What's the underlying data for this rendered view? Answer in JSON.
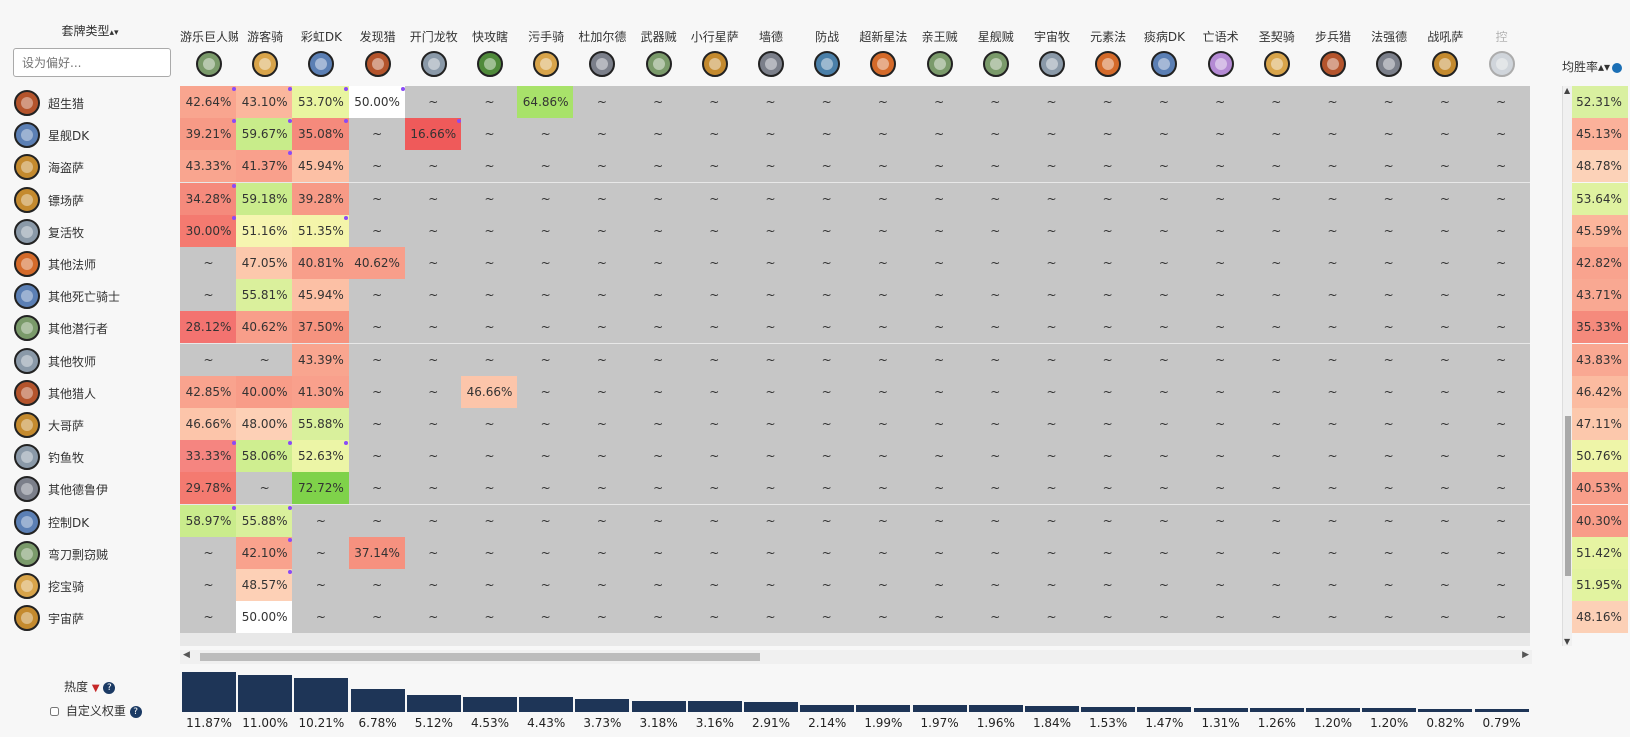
{
  "header": {
    "deck_type_label": "套牌类型",
    "deck_sort_icon": "▴▾",
    "preference_placeholder": "设为偏好...",
    "avg_winrate_label": "均胜率",
    "avg_winrate_sort_icon": "▴▾"
  },
  "footer": {
    "popularity_label": "热度",
    "custom_weight_label": "自定义权重"
  },
  "columns": [
    {
      "name": "游乐巨人贼",
      "icon": "rogue-icon",
      "color": "#7a9a6a"
    },
    {
      "name": "游客骑",
      "icon": "paladin-icon",
      "color": "#d8a44a"
    },
    {
      "name": "彩虹DK",
      "icon": "death-knight-icon",
      "color": "#5b7fb4"
    },
    {
      "name": "发现猎",
      "icon": "hunter-icon",
      "color": "#b4542c"
    },
    {
      "name": "开门龙牧",
      "icon": "priest-icon",
      "color": "#8a99a8"
    },
    {
      "name": "快攻瞎",
      "icon": "demon-hunter-icon",
      "color": "#4f8a3a"
    },
    {
      "name": "污手骑",
      "icon": "paladin-icon",
      "color": "#d8a44a"
    },
    {
      "name": "杜加尔德",
      "icon": "druid-icon",
      "color": "#7b7f8a"
    },
    {
      "name": "武器贼",
      "icon": "rogue-icon",
      "color": "#7a9a6a"
    },
    {
      "name": "小行星萨",
      "icon": "shaman-icon",
      "color": "#c48a2e"
    },
    {
      "name": "墙德",
      "icon": "druid-icon",
      "color": "#7b7f8a"
    },
    {
      "name": "防战",
      "icon": "warrior-icon",
      "color": "#4a7fa8"
    },
    {
      "name": "超新星法",
      "icon": "mage-icon",
      "color": "#d46a2a"
    },
    {
      "name": "亲王贼",
      "icon": "rogue-icon",
      "color": "#7a9a6a"
    },
    {
      "name": "星舰贼",
      "icon": "rogue-icon",
      "color": "#7a9a6a"
    },
    {
      "name": "宇宙牧",
      "icon": "priest-icon",
      "color": "#8a99a8"
    },
    {
      "name": "元素法",
      "icon": "mage-icon",
      "color": "#d46a2a"
    },
    {
      "name": "痰病DK",
      "icon": "death-knight-icon",
      "color": "#5b7fb4"
    },
    {
      "name": "亡语术",
      "icon": "warlock-icon",
      "color": "#b48ad4"
    },
    {
      "name": "圣契骑",
      "icon": "paladin-icon",
      "color": "#d8a44a"
    },
    {
      "name": "步兵猎",
      "icon": "hunter-icon",
      "color": "#b4542c"
    },
    {
      "name": "法强德",
      "icon": "druid-icon",
      "color": "#7b7f8a"
    },
    {
      "name": "战吼萨",
      "icon": "shaman-icon",
      "color": "#c48a2e"
    },
    {
      "name": "控",
      "icon": "priest-icon",
      "color": "#8a99a8"
    }
  ],
  "rows": [
    {
      "name": "超生猎",
      "icon": "hunter-icon",
      "color": "#b4542c",
      "avg": "52.31%",
      "avg_color": "#d9f0a0",
      "cells": [
        [
          "42.64%",
          "#f9a58f",
          1
        ],
        [
          "43.10%",
          "#fbb79d",
          1
        ],
        [
          "53.70%",
          "#e9f5a0",
          1
        ],
        [
          "50.00%",
          "#ffffff",
          1
        ],
        null,
        null,
        [
          "64.86%",
          "#a8e26a",
          0
        ]
      ]
    },
    {
      "name": "星舰DK",
      "icon": "death-knight-icon",
      "color": "#5b7fb4",
      "avg": "45.13%",
      "avg_color": "#fbb19a",
      "cells": [
        [
          "39.21%",
          "#f79a86",
          1
        ],
        [
          "59.67%",
          "#c8ec8a",
          1
        ],
        [
          "35.08%",
          "#f58a7c",
          1
        ],
        null,
        [
          "16.66%",
          "#ef5a5a",
          1
        ]
      ]
    },
    {
      "name": "海盗萨",
      "icon": "shaman-icon",
      "color": "#c48a2e",
      "avg": "48.78%",
      "avg_color": "#fcd2b8",
      "cells": [
        [
          "43.33%",
          "#f9a58f",
          0
        ],
        [
          "41.37%",
          "#f9a08c",
          1
        ],
        [
          "45.94%",
          "#fcc0a5",
          0
        ]
      ]
    },
    {
      "name": "镖场萨",
      "icon": "shaman-icon",
      "color": "#c48a2e",
      "avg": "53.64%",
      "avg_color": "#dff2a0",
      "cells": [
        [
          "34.28%",
          "#f58a7c",
          1
        ],
        [
          "59.18%",
          "#caec8c",
          0
        ],
        [
          "39.28%",
          "#f79a86",
          0
        ]
      ]
    },
    {
      "name": "复活牧",
      "icon": "priest-icon",
      "color": "#8a99a8",
      "avg": "45.59%",
      "avg_color": "#fbb59b",
      "cells": [
        [
          "30.00%",
          "#f47a70",
          1
        ],
        [
          "51.16%",
          "#f6f5b0",
          0
        ],
        [
          "51.35%",
          "#f4f5aa",
          1
        ]
      ]
    },
    {
      "name": "其他法师",
      "icon": "mage-icon",
      "color": "#d46a2a",
      "avg": "42.82%",
      "avg_color": "#f9a38e",
      "cells": [
        null,
        [
          "47.05%",
          "#fcc8ac",
          0
        ],
        [
          "40.81%",
          "#f89e8a",
          0
        ],
        [
          "40.62%",
          "#f89e8a",
          0
        ]
      ]
    },
    {
      "name": "其他死亡骑士",
      "icon": "death-knight-icon",
      "color": "#5b7fb4",
      "avg": "43.71%",
      "avg_color": "#f9a892",
      "cells": [
        null,
        [
          "55.81%",
          "#daf09c",
          0
        ],
        [
          "45.94%",
          "#fcc0a5",
          0
        ]
      ]
    },
    {
      "name": "其他潜行者",
      "icon": "rogue-icon",
      "color": "#7a9a6a",
      "avg": "35.33%",
      "avg_color": "#f58a7c",
      "cells": [
        [
          "28.12%",
          "#f37370",
          0
        ],
        [
          "40.62%",
          "#f89e8a",
          0
        ],
        [
          "37.50%",
          "#f6937f",
          0
        ]
      ]
    },
    {
      "name": "其他牧师",
      "icon": "priest-icon",
      "color": "#8a99a8",
      "avg": "43.83%",
      "avg_color": "#f9a892",
      "cells": [
        null,
        null,
        [
          "43.39%",
          "#f9a58f",
          0
        ]
      ]
    },
    {
      "name": "其他猎人",
      "icon": "hunter-icon",
      "color": "#b4542c",
      "avg": "46.42%",
      "avg_color": "#fbbba0",
      "cells": [
        [
          "42.85%",
          "#f9a38e",
          0
        ],
        [
          "40.00%",
          "#f89c88",
          0
        ],
        [
          "41.30%",
          "#f9a08c",
          0
        ],
        null,
        null,
        [
          "46.66%",
          "#fcc5aa",
          0
        ]
      ]
    },
    {
      "name": "大哥萨",
      "icon": "shaman-icon",
      "color": "#c48a2e",
      "avg": "47.11%",
      "avg_color": "#fcc8ac",
      "cells": [
        [
          "46.66%",
          "#fcc5aa",
          0
        ],
        [
          "48.00%",
          "#fdd0b6",
          0
        ],
        [
          "55.88%",
          "#d9f09c",
          0
        ]
      ]
    },
    {
      "name": "钓鱼牧",
      "icon": "priest-icon",
      "color": "#8a99a8",
      "avg": "50.76%",
      "avg_color": "#eef5a8",
      "cells": [
        [
          "33.33%",
          "#f58580",
          1
        ],
        [
          "58.06%",
          "#cfee90",
          1
        ],
        [
          "52.63%",
          "#ecf5a6",
          1
        ]
      ]
    },
    {
      "name": "其他德鲁伊",
      "icon": "druid-icon",
      "color": "#7b7f8a",
      "avg": "40.53%",
      "avg_color": "#f89e8a",
      "cells": [
        [
          "29.78%",
          "#f47a70",
          0
        ],
        null,
        [
          "72.72%",
          "#7fd24a",
          0
        ]
      ]
    },
    {
      "name": "控制DK",
      "icon": "death-knight-icon",
      "color": "#5b7fb4",
      "avg": "40.30%",
      "avg_color": "#f89c88",
      "cells": [
        [
          "58.97%",
          "#caec8c",
          1
        ],
        [
          "55.88%",
          "#d9f09c",
          1
        ]
      ]
    },
    {
      "name": "弯刀剽窃贼",
      "icon": "rogue-icon",
      "color": "#7a9a6a",
      "avg": "51.42%",
      "avg_color": "#e6f4a2",
      "cells": [
        null,
        [
          "42.10%",
          "#f9a28d",
          1
        ],
        null,
        [
          "37.14%",
          "#f6917f",
          0
        ]
      ]
    },
    {
      "name": "挖宝骑",
      "icon": "paladin-icon",
      "color": "#d8a44a",
      "avg": "51.95%",
      "avg_color": "#e2f3a0",
      "cells": [
        null,
        [
          "48.57%",
          "#fdd0b6",
          1
        ]
      ]
    },
    {
      "name": "宇宙萨",
      "icon": "shaman-icon",
      "color": "#c48a2e",
      "avg": "48.16%",
      "avg_color": "#fcd0b6",
      "cells": [
        null,
        [
          "50.00%",
          "#ffffff",
          0
        ]
      ]
    }
  ],
  "empty_cell": "~",
  "popularity": [
    "11.87%",
    "11.00%",
    "10.21%",
    "6.78%",
    "5.12%",
    "4.53%",
    "4.43%",
    "3.73%",
    "3.18%",
    "3.16%",
    "2.91%",
    "2.14%",
    "1.99%",
    "1.97%",
    "1.96%",
    "1.84%",
    "1.53%",
    "1.47%",
    "1.31%",
    "1.26%",
    "1.20%",
    "1.20%",
    "0.82%",
    "0.79%"
  ]
}
